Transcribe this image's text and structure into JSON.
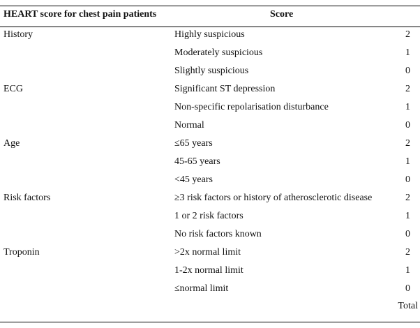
{
  "table": {
    "title": "HEART score for chest pain patients",
    "score_header": "Score",
    "rows": [
      {
        "category": "History",
        "criterion": "Highly suspicious",
        "points": "2"
      },
      {
        "category": "",
        "criterion": "Moderately suspicious",
        "points": "1"
      },
      {
        "category": "",
        "criterion": "Slightly suspicious",
        "points": "0"
      },
      {
        "category": "ECG",
        "criterion": "Significant ST depression",
        "points": "2"
      },
      {
        "category": "",
        "criterion": "Non-specific repolarisation disturbance",
        "points": "1"
      },
      {
        "category": "",
        "criterion": "Normal",
        "points": "0"
      },
      {
        "category": "Age",
        "criterion": "≤65 years",
        "points": "2"
      },
      {
        "category": "",
        "criterion": "45-65 years",
        "points": "1"
      },
      {
        "category": "",
        "criterion": "<45 years",
        "points": "0"
      },
      {
        "category": "Risk factors",
        "criterion": "≥3 risk factors or history of atherosclerotic disease",
        "points": "2"
      },
      {
        "category": "",
        "criterion": "1 or 2 risk factors",
        "points": "1"
      },
      {
        "category": "",
        "criterion": "No risk factors known",
        "points": "0"
      },
      {
        "category": "Troponin",
        "criterion": ">2x normal limit",
        "points": "2"
      },
      {
        "category": "",
        "criterion": "1-2x normal limit",
        "points": "1"
      },
      {
        "category": "",
        "criterion": "≤normal limit",
        "points": "0"
      }
    ],
    "total_label": "Total"
  }
}
